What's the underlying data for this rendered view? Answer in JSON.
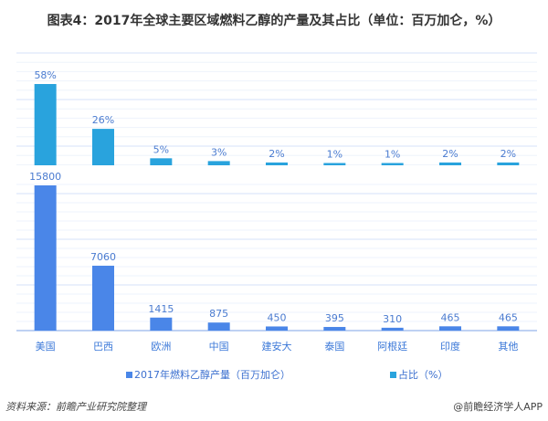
{
  "title": "图表4：2017年全球主要区域燃料乙醇的产量及其占比（单位：百万加仑，%）",
  "chart_data": {
    "type": "bar",
    "categories": [
      "美国",
      "巴西",
      "欧洲",
      "中国",
      "建安大",
      "泰国",
      "阿根廷",
      "印度",
      "其他"
    ],
    "series": [
      {
        "name": "2017年燃料乙醇产量（百万加仑）",
        "values": [
          15800,
          7060,
          1415,
          875,
          450,
          395,
          310,
          465,
          465
        ],
        "color": "#4a86e8"
      },
      {
        "name": "占比（%）",
        "values": [
          58,
          26,
          5,
          3,
          2,
          1,
          1,
          2,
          2
        ],
        "color": "#29a3dd"
      }
    ],
    "grid": true,
    "legend": "bottom"
  },
  "source": "资料来源：前瞻产业研究院整理",
  "credit": "@前瞻经济学人APP"
}
